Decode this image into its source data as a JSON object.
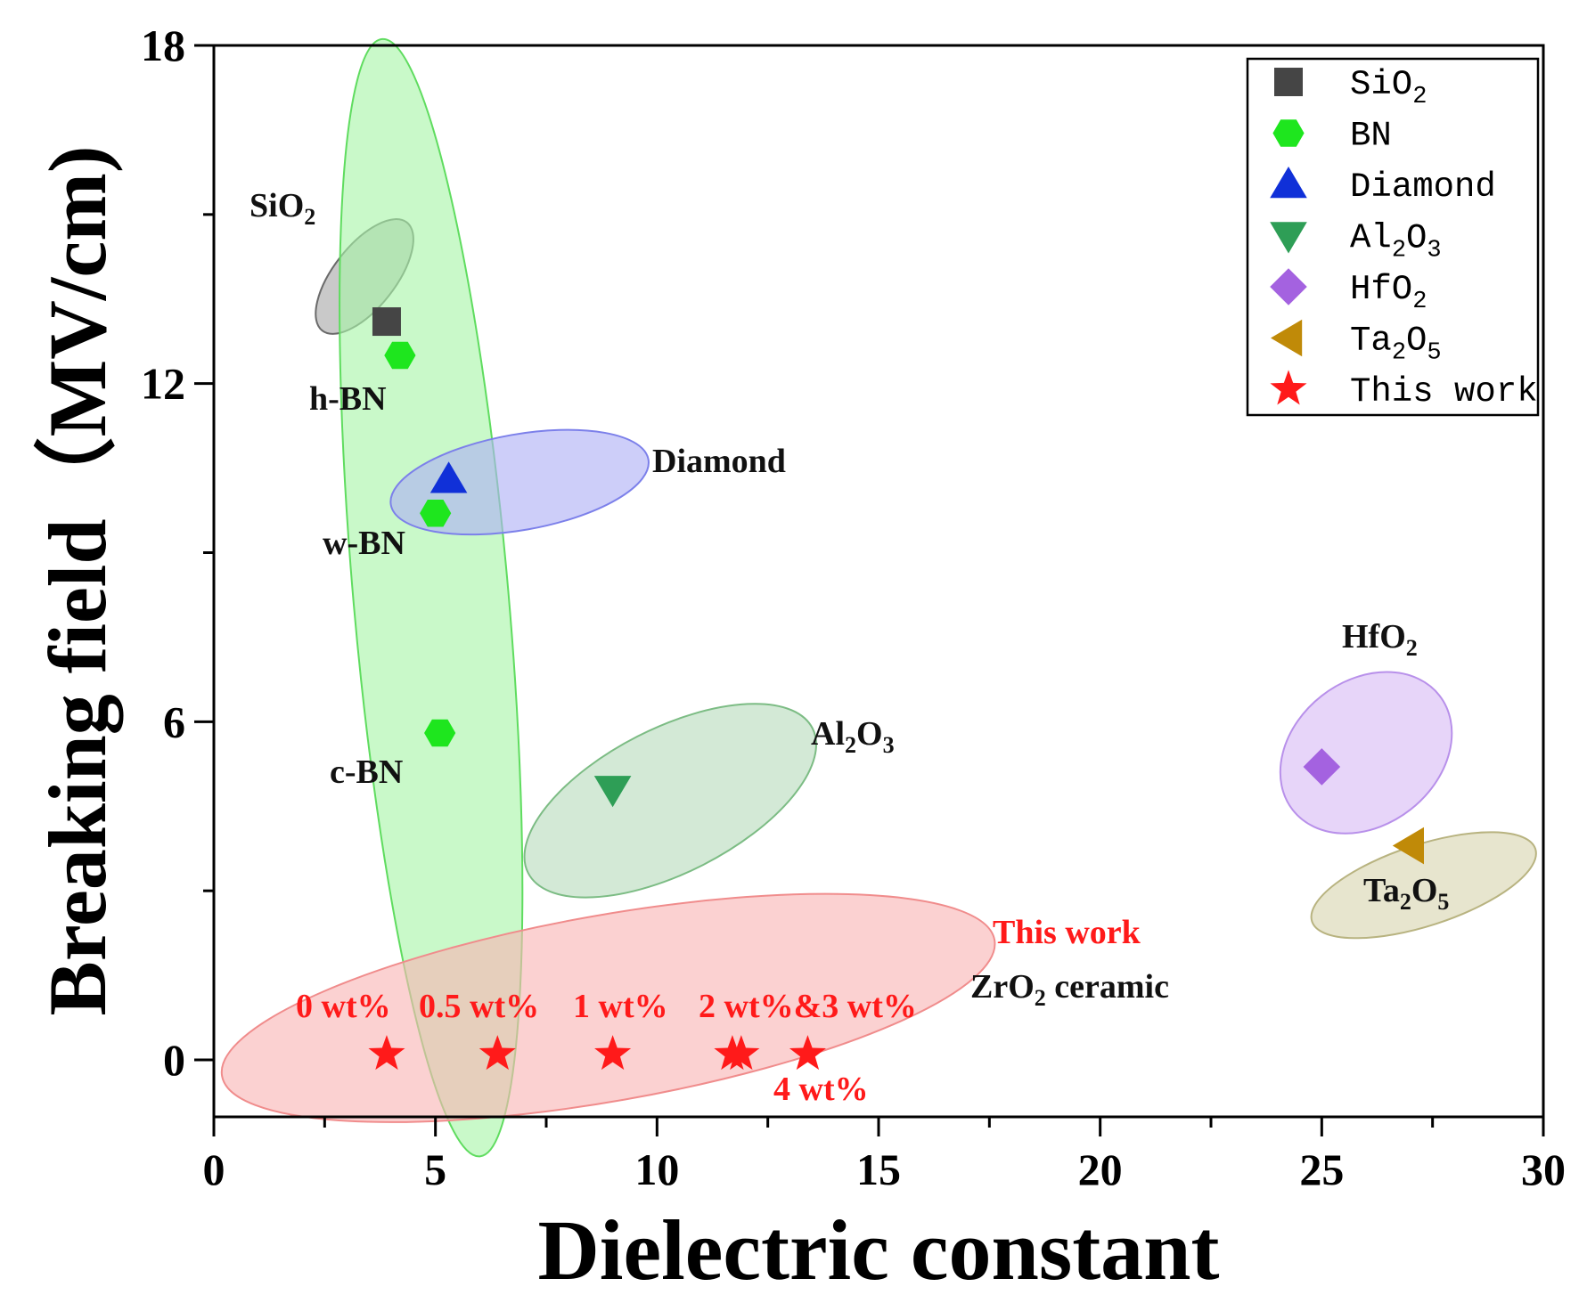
{
  "chart_data": {
    "type": "scatter",
    "xlabel": "Dielectric constant",
    "ylabel": "Breaking field（MV/cm)",
    "xlim": [
      0,
      30
    ],
    "ylim": [
      -1,
      18
    ],
    "x_ticks": [
      0,
      5,
      10,
      15,
      20,
      25,
      30
    ],
    "y_ticks": [
      0,
      6,
      12,
      18
    ],
    "grid": false,
    "legend_position": "top-right",
    "series": [
      {
        "name": "SiO2",
        "legend_label": "SiO",
        "legend_sub": "2",
        "marker": "square",
        "color": "#454545",
        "points": [
          {
            "x": 3.9,
            "y": 13.1
          }
        ]
      },
      {
        "name": "BN",
        "legend_label": "BN",
        "legend_sub": "",
        "marker": "hexagon",
        "color": "#1ee61e",
        "points": [
          {
            "x": 4.2,
            "y": 12.5
          },
          {
            "x": 5.0,
            "y": 9.7
          },
          {
            "x": 5.1,
            "y": 5.8
          }
        ]
      },
      {
        "name": "Diamond",
        "legend_label": "Diamond",
        "legend_sub": "",
        "marker": "triangle-up",
        "color": "#1030d8",
        "points": [
          {
            "x": 5.3,
            "y": 10.3
          }
        ]
      },
      {
        "name": "Al2O3",
        "legend_label": "Al",
        "legend_sub": "2",
        "legend_label2": "O",
        "legend_sub2": "3",
        "marker": "triangle-down",
        "color": "#2e9e56",
        "points": [
          {
            "x": 9.0,
            "y": 4.8
          }
        ]
      },
      {
        "name": "HfO2",
        "legend_label": "HfO",
        "legend_sub": "2",
        "marker": "diamond",
        "color": "#a462e0",
        "points": [
          {
            "x": 25.0,
            "y": 5.2
          }
        ]
      },
      {
        "name": "Ta2O5",
        "legend_label": "Ta",
        "legend_sub": "2",
        "legend_label2": "O",
        "legend_sub2": "5",
        "marker": "triangle-left",
        "color": "#c08a08",
        "points": [
          {
            "x": 27.0,
            "y": 3.8
          }
        ]
      },
      {
        "name": "This work",
        "legend_label": "This work",
        "legend_sub": "",
        "marker": "star",
        "color": "#ff1a1a",
        "points": [
          {
            "x": 3.9,
            "y": 0.1
          },
          {
            "x": 6.4,
            "y": 0.1
          },
          {
            "x": 9.0,
            "y": 0.1
          },
          {
            "x": 11.7,
            "y": 0.1
          },
          {
            "x": 11.9,
            "y": 0.1
          },
          {
            "x": 13.4,
            "y": 0.1
          }
        ]
      }
    ],
    "regions": [
      {
        "name": "sio2-region",
        "cx": 3.4,
        "cy": 13.9,
        "rx": 1.55,
        "ry": 0.55,
        "angle": 52,
        "fill": "#a8a8a8",
        "stroke": "#6a6a6a"
      },
      {
        "name": "bn-region",
        "cx": 4.9,
        "cy": 8.2,
        "rx": 1.75,
        "ry": 9.95,
        "angle": 5,
        "fill": "#a8f5a8",
        "stroke": "#5fdc5f"
      },
      {
        "name": "diamond-region",
        "cx": 6.9,
        "cy": 10.25,
        "rx": 2.95,
        "ry": 0.85,
        "angle": 10,
        "fill": "#aeb0f5",
        "stroke": "#7c80ea"
      },
      {
        "name": "al2o3-region",
        "cx": 10.3,
        "cy": 4.6,
        "rx": 3.6,
        "ry": 1.28,
        "angle": 27,
        "fill": "#b8dcbd",
        "stroke": "#7cbc84"
      },
      {
        "name": "hfo2-region",
        "cx": 26.0,
        "cy": 5.45,
        "rx": 2.1,
        "ry": 1.28,
        "angle": 38,
        "fill": "#d8bcf5",
        "stroke": "#b890ea"
      },
      {
        "name": "ta2o5-region",
        "cx": 27.3,
        "cy": 3.1,
        "rx": 2.65,
        "ry": 0.72,
        "angle": 18,
        "fill": "#d8d5b0",
        "stroke": "#b8b380"
      },
      {
        "name": "this-work-region",
        "cx": 8.9,
        "cy": 0.92,
        "rx": 8.85,
        "ry": 1.65,
        "angle": 10,
        "fill": "#f8b4b4",
        "stroke": "#f08c8c"
      }
    ],
    "annotations": [
      {
        "id": "sio2",
        "main": "SiO",
        "sub": "2",
        "after": "",
        "color": "#111111"
      },
      {
        "id": "hbn",
        "main": "h-BN",
        "sub": "",
        "after": "",
        "color": "#111111"
      },
      {
        "id": "diamond",
        "main": "Diamond",
        "sub": "",
        "after": "",
        "color": "#111111"
      },
      {
        "id": "wbn",
        "main": "w-BN",
        "sub": "",
        "after": "",
        "color": "#111111"
      },
      {
        "id": "cbn",
        "main": "c-BN",
        "sub": "",
        "after": "",
        "color": "#111111"
      },
      {
        "id": "al2o3",
        "main": "Al",
        "sub": "2",
        "after": "O",
        "sub2": "3",
        "color": "#111111"
      },
      {
        "id": "hfo2",
        "main": "HfO",
        "sub": "2",
        "after": "",
        "color": "#111111"
      },
      {
        "id": "ta2o5",
        "main": "Ta",
        "sub": "2",
        "after": "O",
        "sub2": "5",
        "color": "#111111"
      },
      {
        "id": "this-work",
        "main": "This work",
        "sub": "",
        "after": "",
        "color": "#ff1a1a"
      },
      {
        "id": "zro2",
        "main": "ZrO",
        "sub": "2",
        "after": " ceramic",
        "color": "#111111"
      },
      {
        "id": "wt0",
        "main": "0 wt%",
        "sub": "",
        "after": "",
        "color": "#ff1a1a"
      },
      {
        "id": "wt05",
        "main": "0.5 wt%",
        "sub": "",
        "after": "",
        "color": "#ff1a1a"
      },
      {
        "id": "wt1",
        "main": "1 wt%",
        "sub": "",
        "after": "",
        "color": "#ff1a1a"
      },
      {
        "id": "wt23",
        "main": "2 wt%&3 wt%",
        "sub": "",
        "after": "",
        "color": "#ff1a1a"
      },
      {
        "id": "wt4",
        "main": "4 wt%",
        "sub": "",
        "after": "",
        "color": "#ff1a1a"
      }
    ]
  }
}
